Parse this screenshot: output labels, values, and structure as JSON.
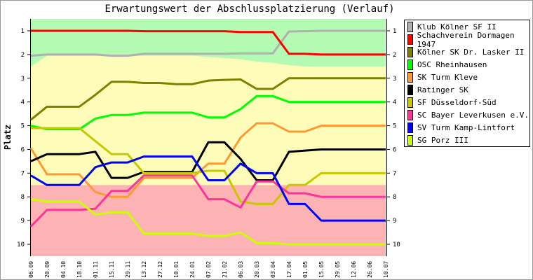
{
  "chart_data": {
    "type": "line",
    "title": "Erwartungswert der Abschlussplatzierung (Verlauf)",
    "ylabel": "Platz",
    "xlabel": "",
    "ylim": [
      1,
      10
    ],
    "y_inverted": true,
    "yticks": [
      "1",
      "2",
      "3",
      "4",
      "5",
      "6",
      "7",
      "8",
      "9",
      "10"
    ],
    "categories": [
      "06.09",
      "20.09",
      "04.10",
      "18.10",
      "01.11",
      "15.11",
      "29.11",
      "13.12",
      "27.12",
      "10.01",
      "24.01",
      "07.02",
      "21.02",
      "06.03",
      "20.03",
      "03.04",
      "17.04",
      "01.05",
      "15.05",
      "29.05",
      "12.06",
      "26.06",
      "10.07"
    ],
    "zones": {
      "promotion_boundary": [
        2.5,
        2.05,
        2.05,
        2.05,
        2.05,
        2.05,
        2.05,
        2.05,
        2.05,
        2.05,
        2.05,
        2.1,
        2.15,
        2.2,
        2.3,
        2.35,
        2.45,
        2.5,
        2.5,
        2.5,
        2.5,
        2.5,
        2.5
      ],
      "relegation_boundary": 7.5,
      "colors": {
        "promotion": "#b3fbb3",
        "middle": "#fdfdb9",
        "relegation": "#fdb3b3"
      }
    },
    "series": [
      {
        "name": "Klub Kölner SF II",
        "color": "#b0b0b0",
        "values": [
          2.05,
          2,
          2,
          2,
          2,
          2.05,
          2.05,
          1.97,
          1.97,
          1.97,
          1.97,
          1.97,
          1.97,
          1.95,
          1.95,
          1.95,
          1.03,
          1.02,
          1,
          1,
          1,
          1,
          1
        ]
      },
      {
        "name": "Schachverein Dormagen 1947",
        "color": "#ff0000",
        "values": [
          1,
          1,
          1,
          1,
          1,
          1,
          1,
          1.02,
          1.02,
          1.02,
          1.02,
          1.02,
          1.02,
          1.05,
          1.05,
          1.05,
          1.97,
          1.97,
          2,
          2,
          2,
          2,
          2
        ]
      },
      {
        "name": "Kölner SK Dr. Lasker II",
        "color": "#808000",
        "values": [
          4.75,
          4.2,
          4.2,
          4.2,
          3.7,
          3.15,
          3.15,
          3.2,
          3.2,
          3.25,
          3.25,
          3.1,
          3.07,
          3.05,
          3.45,
          3.45,
          3,
          3,
          3,
          3,
          3,
          3,
          3
        ]
      },
      {
        "name": "OSC Rheinhausen",
        "color": "#00ff00",
        "values": [
          5,
          5.15,
          5.15,
          5.15,
          4.7,
          4.55,
          4.55,
          4.45,
          4.45,
          4.45,
          4.45,
          4.65,
          4.65,
          4.3,
          3.75,
          3.75,
          4,
          4,
          4,
          4,
          4,
          4,
          4
        ]
      },
      {
        "name": "SK Turm Kleve",
        "color": "#ff9933",
        "values": [
          5.95,
          7.05,
          7.05,
          7.05,
          7.8,
          8,
          8,
          7.2,
          7.2,
          7.2,
          7.2,
          6.6,
          6.6,
          5.5,
          4.9,
          4.9,
          5.25,
          5.25,
          5,
          5,
          5,
          5,
          5
        ]
      },
      {
        "name": "Ratinger SK",
        "color": "#000000",
        "values": [
          6.5,
          6.2,
          6.2,
          6.2,
          6.1,
          7.2,
          7.2,
          6.95,
          6.95,
          6.95,
          6.95,
          5.7,
          5.7,
          6.4,
          7.3,
          7.3,
          6.1,
          6.05,
          6,
          6,
          6,
          6,
          6
        ]
      },
      {
        "name": "SF Düsseldorf-Süd",
        "color": "#c8c800",
        "values": [
          5.1,
          5.1,
          5.1,
          5.1,
          5.65,
          6.2,
          6.2,
          7,
          7,
          7,
          7,
          6.9,
          6.9,
          8.2,
          8.3,
          8.3,
          7.5,
          7.5,
          7,
          7,
          7,
          7,
          7
        ]
      },
      {
        "name": "SC Bayer Leverkusen e.V.",
        "color": "#ff3399",
        "values": [
          9.25,
          8.55,
          8.55,
          8.55,
          8.5,
          7.75,
          7.75,
          7.1,
          7.1,
          7.1,
          7.1,
          8.1,
          8.1,
          8.45,
          7.35,
          7.35,
          7.85,
          7.85,
          8,
          8,
          8,
          8,
          8
        ]
      },
      {
        "name": "SV Turm Kamp-Lintfort",
        "color": "#0000ff",
        "values": [
          7.1,
          7.5,
          7.5,
          7.5,
          6.75,
          6.55,
          6.55,
          6.3,
          6.3,
          6.3,
          6.3,
          7.3,
          7.3,
          6.6,
          7,
          7,
          8.3,
          8.3,
          9,
          9,
          9,
          9,
          9
        ]
      },
      {
        "name": "SG Porz III",
        "color": "#ccff00",
        "values": [
          8.1,
          8.2,
          8.2,
          8.2,
          8.75,
          8.65,
          8.65,
          9.55,
          9.55,
          9.55,
          9.55,
          9.65,
          9.65,
          9.5,
          9.95,
          9.95,
          10,
          10,
          10,
          10,
          10,
          10,
          10
        ]
      }
    ],
    "legend_position": "right",
    "grid": false
  }
}
